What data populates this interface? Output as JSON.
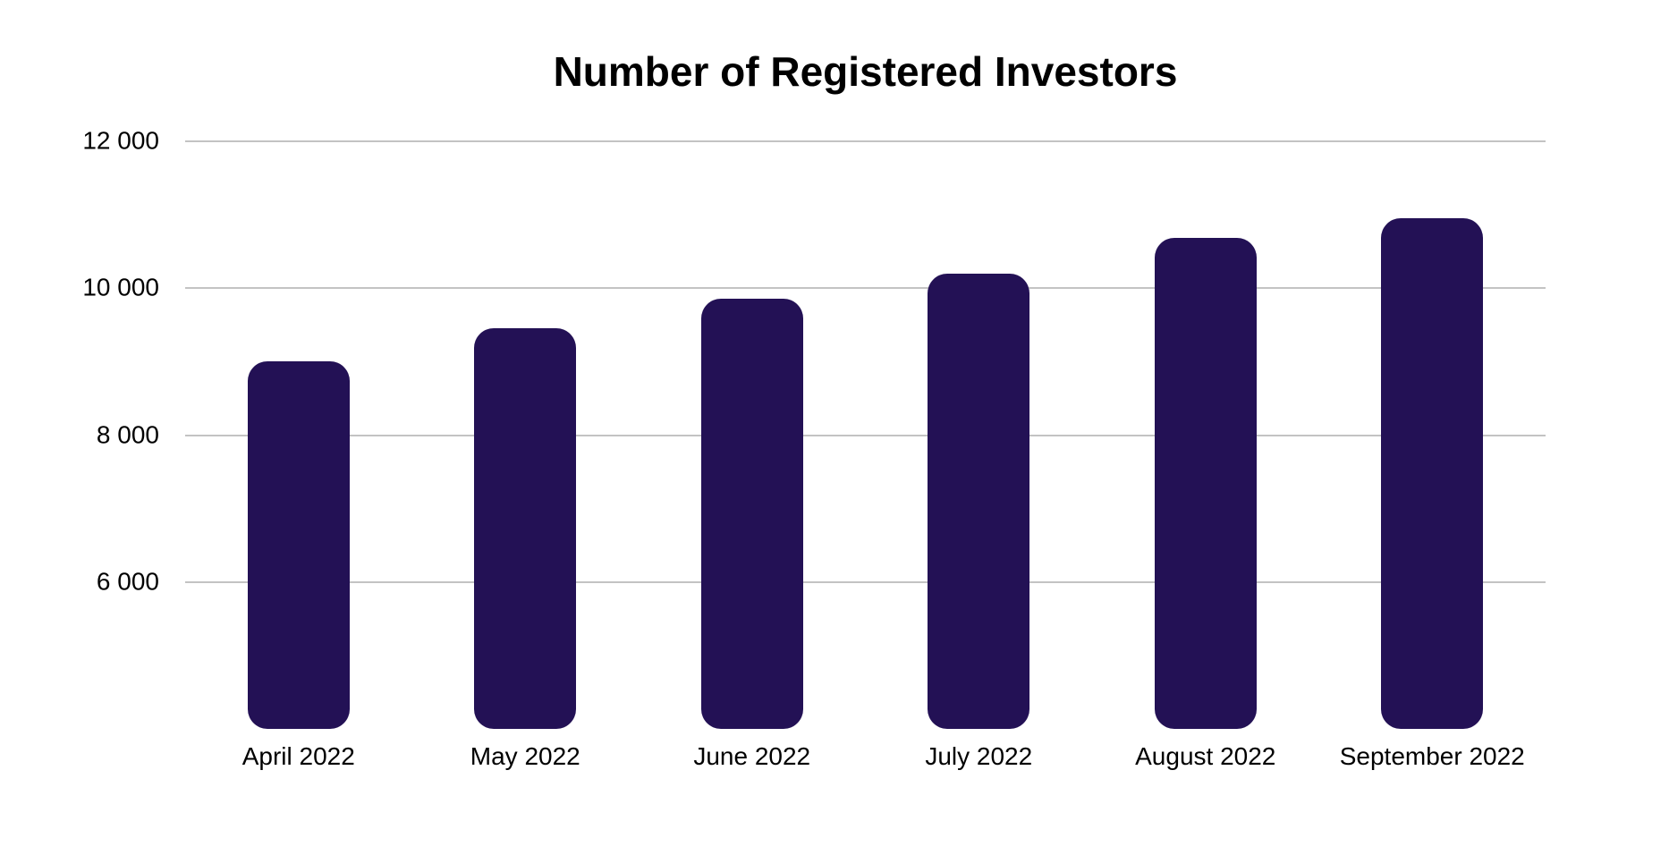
{
  "chart_data": {
    "type": "bar",
    "title": "Number of Registered Investors",
    "categories": [
      "April 2022",
      "May 2022",
      "June 2022",
      "July 2022",
      "August 2022",
      "September 2022"
    ],
    "values": [
      9000,
      9450,
      9860,
      10200,
      10690,
      10950
    ],
    "xlabel": "",
    "ylabel": "",
    "ylim": [
      4000,
      12000
    ],
    "y_ticks": [
      {
        "value": 12000,
        "label": "12 000"
      },
      {
        "value": 10000,
        "label": "10 000"
      },
      {
        "value": 8000,
        "label": "8 000"
      },
      {
        "value": 6000,
        "label": "6 000"
      }
    ],
    "grid": true,
    "legend": false,
    "layout": "single series, vertical rounded bars, gridlines only (no axis lines), y-axis labels left, baseline at 4000",
    "colors": {
      "bar": "#231155",
      "gridline": "#C3C3C3",
      "text": "#000000",
      "background": "#FFFFFF"
    }
  }
}
